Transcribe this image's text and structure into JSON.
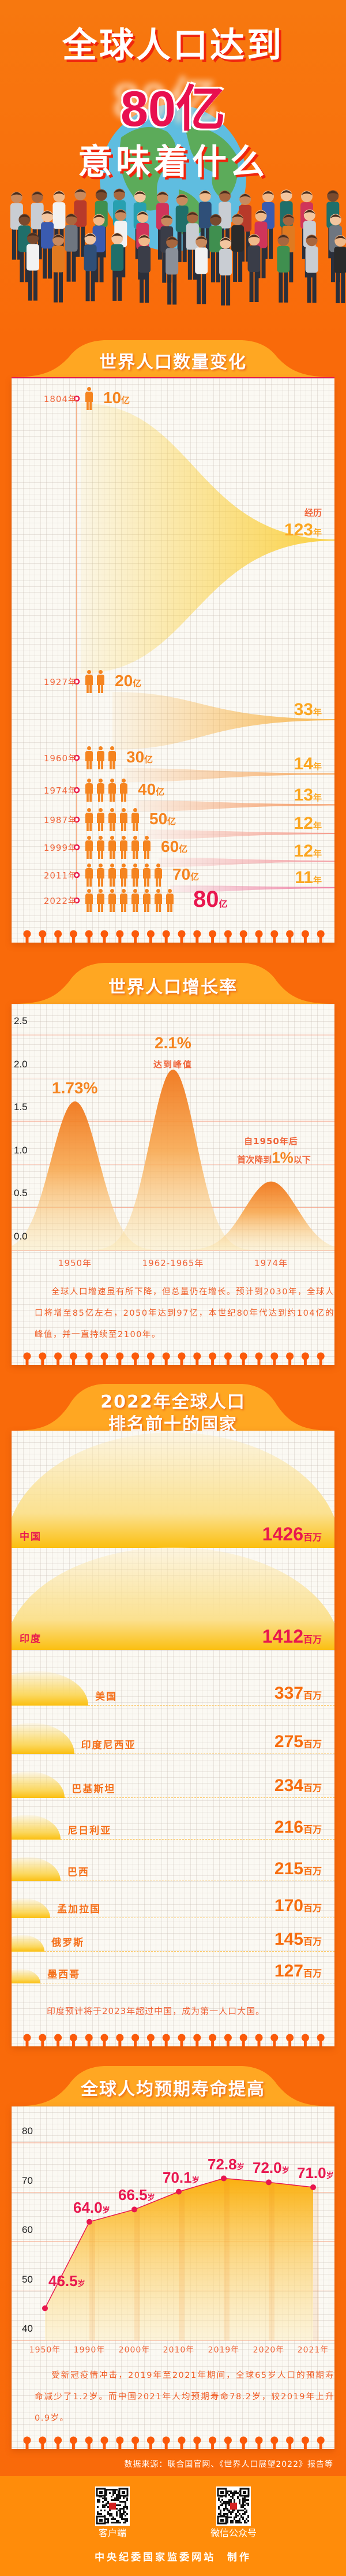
{
  "header": {
    "title_line1": "全球人口达到",
    "title_highlight": "80亿",
    "title_line3": "意味着什么"
  },
  "section1": {
    "title": "世界人口数量变化",
    "rows": [
      {
        "year": "1804年",
        "value": "10",
        "unit": "亿",
        "figures": 1
      },
      {
        "year": "1927年",
        "value": "20",
        "unit": "亿",
        "figures": 2
      },
      {
        "year": "1960年",
        "value": "30",
        "unit": "亿",
        "figures": 3
      },
      {
        "year": "1974年",
        "value": "40",
        "unit": "亿",
        "figures": 4
      },
      {
        "year": "1987年",
        "value": "50",
        "unit": "亿",
        "figures": 5
      },
      {
        "year": "1999年",
        "value": "60",
        "unit": "亿",
        "figures": 6
      },
      {
        "year": "2011年",
        "value": "70",
        "unit": "亿",
        "figures": 7
      },
      {
        "year": "2022年",
        "value": "80",
        "unit": "亿",
        "figures": 8
      }
    ],
    "intervals": [
      {
        "prefix": "经历",
        "value": "123",
        "unit": "年"
      },
      {
        "value": "33",
        "unit": "年"
      },
      {
        "value": "14",
        "unit": "年"
      },
      {
        "value": "13",
        "unit": "年"
      },
      {
        "value": "12",
        "unit": "年"
      },
      {
        "value": "12",
        "unit": "年"
      },
      {
        "value": "11",
        "unit": "年"
      }
    ]
  },
  "section2": {
    "title": "世界人口增长率",
    "peak_value": "2.1%",
    "peak_note": "达到峰值",
    "first_value": "1.73%",
    "drop_note_line1": "自1950年后",
    "drop_note_prefix": "首次降到",
    "drop_note_value": "1%",
    "drop_note_suffix": "以下",
    "paragraph": "全球人口增速虽有所下降，但总量仍在增长。预计到2030年，全球人口将增至85亿左右，2050年达到97亿，本世纪80年代达到约104亿的峰值，并一直持续至2100年。"
  },
  "section3": {
    "title_line1": "2022年全球人口",
    "title_line2": "排名前十的国家",
    "note": "印度预计将于2023年超过中国，成为第一人口大国。"
  },
  "section4": {
    "title": "全球人均预期寿命提高",
    "paragraph": "受新冠疫情冲击，2019年至2021年期间，全球65岁人口的预期寿命减少了1.2岁。而中国2021年人均预期寿命78.2岁，较2019年上升0.9岁。"
  },
  "chart_data": [
    {
      "type": "area",
      "categories": [
        "1950年",
        "1962-1965年",
        "1974年"
      ],
      "values": [
        1.73,
        2.1,
        0.8
      ],
      "value_labels": [
        "1.73%",
        "2.1%",
        ""
      ],
      "yticks": [
        "0.0",
        "0.5",
        "1.0",
        "1.5",
        "2.0",
        "2.5"
      ],
      "ylim": [
        0,
        2.5
      ],
      "grid": true
    },
    {
      "type": "bar",
      "unit": "百万",
      "categories": [
        "中国",
        "印度",
        "美国",
        "印度尼西亚",
        "巴基斯坦",
        "尼日利亚",
        "巴西",
        "孟加拉国",
        "俄罗斯",
        "墨西哥"
      ],
      "values": [
        1426,
        1412,
        337,
        275,
        234,
        216,
        215,
        170,
        145,
        127
      ],
      "highlight_color": "#e8174f",
      "bar_color": "#fbbf10"
    },
    {
      "type": "line",
      "categories": [
        "1950年",
        "1990年",
        "2000年",
        "2010年",
        "2019年",
        "2020年",
        "2021年"
      ],
      "values": [
        46.5,
        64.0,
        66.5,
        70.1,
        72.8,
        72.0,
        71.0
      ],
      "value_labels": [
        "46.5",
        "64.0",
        "66.5",
        "70.1",
        "72.8",
        "72.0",
        "71.0"
      ],
      "unit": "岁",
      "yticks": [
        "40",
        "50",
        "60",
        "70",
        "80"
      ],
      "ylim": [
        40,
        80
      ],
      "grid": true,
      "line_color": "#e8174f"
    }
  ],
  "footer": {
    "source": "数据来源：联合国官网、《世界人口展望2022》报告等",
    "qr_left_label": "客户端",
    "qr_right_label": "微信公众号",
    "credit": "中央纪委国家监委网站  制作"
  },
  "colors": {
    "background": "#f96a0a",
    "banner": "#ffa722",
    "accent_pink": "#e8174f",
    "text_orange": "#f0653a",
    "figure_orange": "#f5841f",
    "footer": "#ff8c0a"
  }
}
